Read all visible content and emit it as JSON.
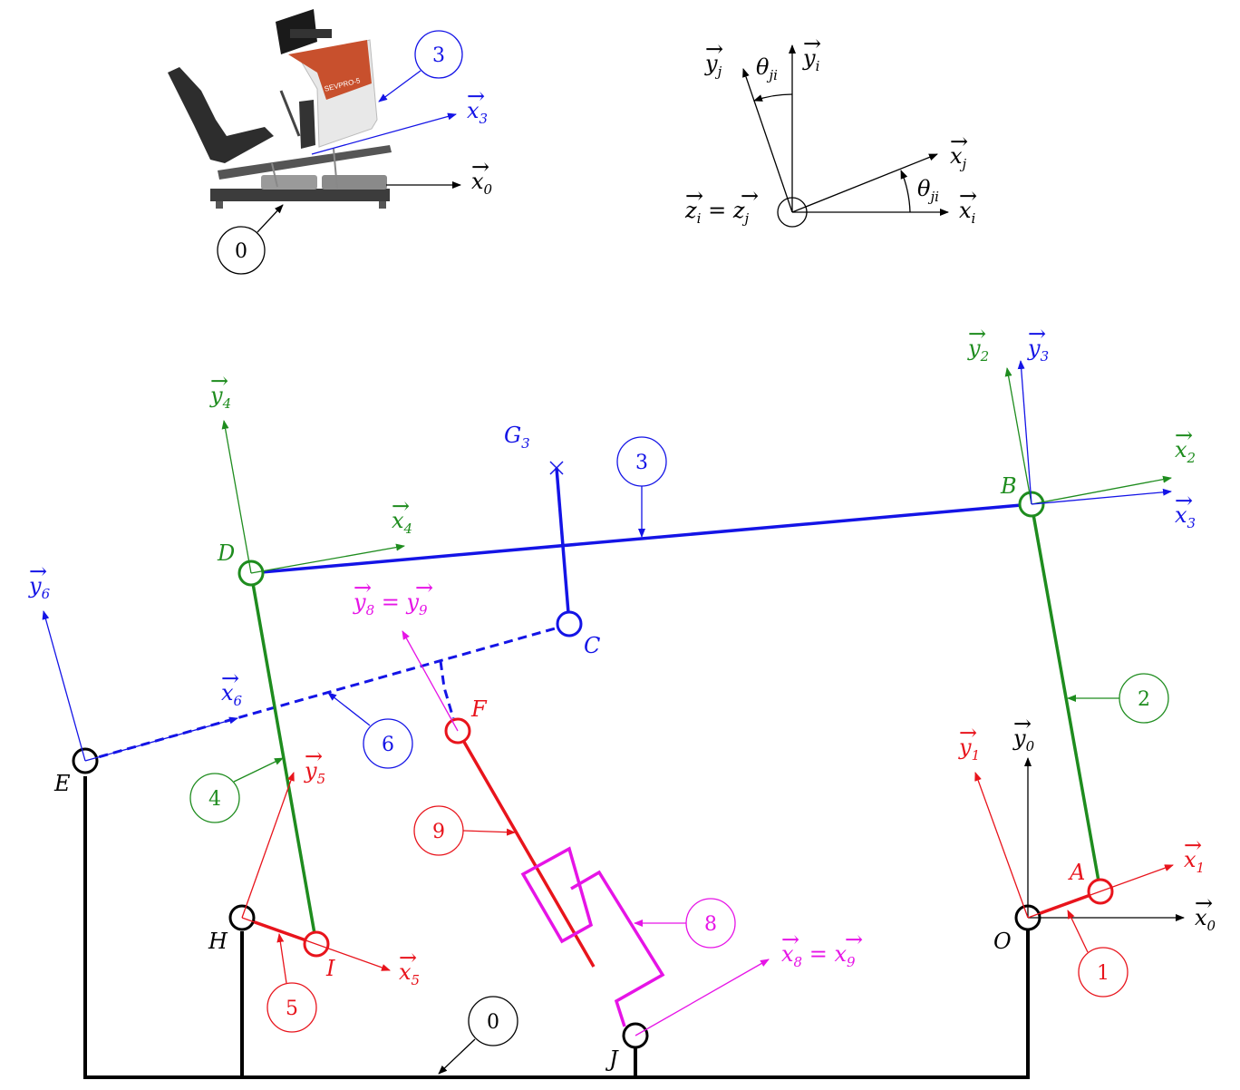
{
  "colors": {
    "black": "#000000",
    "red": "#e8141c",
    "green": "#1e8c1e",
    "blue": "#1414e6",
    "magenta": "#e614e6",
    "seat_orange": "#c8502d",
    "seat_dark": "#2d2d2d",
    "seat_grey": "#8c8c8c"
  },
  "photo": {
    "brand_text": "SEVPRO-5",
    "part_3_label": "3",
    "part_0_label": "0",
    "x3_base": "x",
    "x3_sub": "3",
    "x0_base": "x",
    "x0_sub": "0"
  },
  "angle_legend": {
    "yj_base": "y",
    "yj_sub": "j",
    "yi_base": "y",
    "yi_sub": "i",
    "xj_base": "x",
    "xj_sub": "j",
    "xi_base": "x",
    "xi_sub": "i",
    "theta_top_base": "θ",
    "theta_top_sub": "ji",
    "theta_right_base": "θ",
    "theta_right_sub": "ji",
    "z_text_1": "z",
    "z_sub_1": "i",
    "z_eq": " = ",
    "z_text_2": "z",
    "z_sub_2": "j"
  },
  "points": {
    "A": "A",
    "B": "B",
    "C": "C",
    "D": "D",
    "E": "E",
    "F": "F",
    "G": "G",
    "G_sub": "3",
    "H": "H",
    "I": "I",
    "J": "J",
    "O": "O"
  },
  "part_numbers": {
    "p0": "0",
    "p1": "1",
    "p2": "2",
    "p3": "3",
    "p4": "4",
    "p5": "5",
    "p6": "6",
    "p8": "8",
    "p9": "9"
  },
  "vectors": {
    "x0": {
      "base": "x",
      "sub": "0"
    },
    "y0": {
      "base": "y",
      "sub": "0"
    },
    "x1": {
      "base": "x",
      "sub": "1"
    },
    "y1": {
      "base": "y",
      "sub": "1"
    },
    "x2": {
      "base": "x",
      "sub": "2"
    },
    "y2": {
      "base": "y",
      "sub": "2"
    },
    "x3": {
      "base": "x",
      "sub": "3"
    },
    "y3": {
      "base": "y",
      "sub": "3"
    },
    "x4": {
      "base": "x",
      "sub": "4"
    },
    "y4": {
      "base": "y",
      "sub": "4"
    },
    "x5": {
      "base": "x",
      "sub": "5"
    },
    "y5": {
      "base": "y",
      "sub": "5"
    },
    "x6": {
      "base": "x",
      "sub": "6"
    },
    "y6": {
      "base": "y",
      "sub": "6"
    },
    "x89": {
      "base1": "x",
      "sub1": "8",
      "eq": " = ",
      "base2": "x",
      "sub2": "9"
    },
    "y89": {
      "base1": "y",
      "sub1": "8",
      "eq": " = ",
      "base2": "y",
      "sub2": "9"
    }
  }
}
